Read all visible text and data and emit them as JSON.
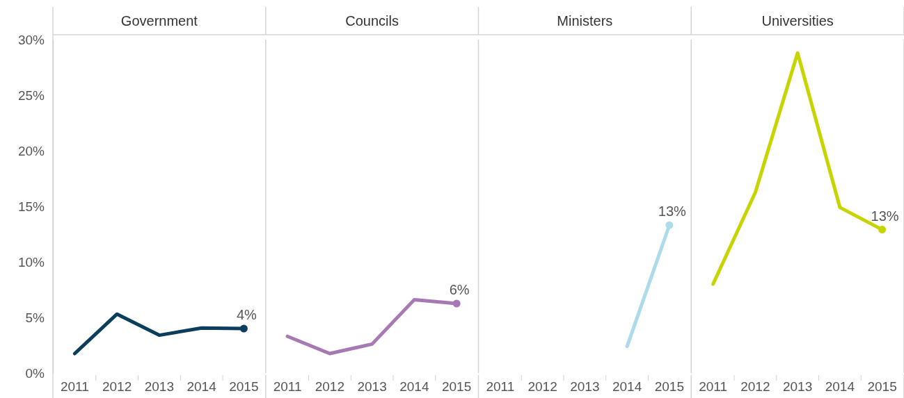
{
  "chart_data": [
    {
      "type": "line",
      "title": "Government",
      "categories": [
        "2011",
        "2012",
        "2013",
        "2014",
        "2015"
      ],
      "ylim": [
        0,
        30
      ],
      "yticks": [
        {
          "value": 0,
          "label": "0%"
        },
        {
          "value": 5,
          "label": "5%"
        },
        {
          "value": 10,
          "label": "10%"
        },
        {
          "value": 15,
          "label": "15%"
        },
        {
          "value": 20,
          "label": "20%"
        },
        {
          "value": 25,
          "label": "25%"
        },
        {
          "value": 30,
          "label": "30%"
        }
      ],
      "series": [
        {
          "color": "#0b3d5c",
          "values": [
            1.75,
            5.3,
            3.4,
            4.05,
            4.0
          ],
          "value_labels": [
            null,
            null,
            null,
            null,
            "4%"
          ]
        }
      ]
    },
    {
      "type": "line",
      "title": "Councils",
      "categories": [
        "2011",
        "2012",
        "2013",
        "2014",
        "2015"
      ],
      "ylim": [
        0,
        30
      ],
      "tick_labels": "x",
      "series": [
        {
          "color": "#a878b4",
          "values": [
            3.3,
            1.75,
            2.6,
            6.6,
            6.25
          ],
          "value_labels": [
            null,
            null,
            null,
            null,
            "6%"
          ]
        }
      ]
    },
    {
      "type": "line",
      "title": "Ministers",
      "categories": [
        "2011",
        "2012",
        "2013",
        "2014",
        "2015"
      ],
      "ylim": [
        0,
        30
      ],
      "tick_labels": "x",
      "series": [
        {
          "color": "#acdcec",
          "values": [
            null,
            null,
            null,
            2.4,
            13.3
          ],
          "value_labels": [
            null,
            null,
            null,
            null,
            "13%"
          ]
        }
      ]
    },
    {
      "type": "line",
      "title": "Universities",
      "categories": [
        "2011",
        "2012",
        "2013",
        "2014",
        "2015"
      ],
      "ylim": [
        0,
        30
      ],
      "tick_labels": "x",
      "series": [
        {
          "color": "#c8d400",
          "values": [
            8.0,
            16.25,
            28.8,
            14.9,
            12.9
          ],
          "value_labels": [
            null,
            null,
            null,
            null,
            "13%"
          ]
        }
      ]
    }
  ]
}
